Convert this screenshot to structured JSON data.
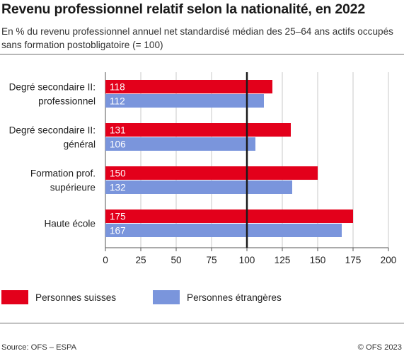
{
  "header": {
    "title": "Revenu professionnel relatif selon la nationalité, en 2022",
    "subtitle": "En % du revenu professionnel annuel net standardisé médian des 25–64 ans actifs occupés sans formation postobligatoire (= 100)"
  },
  "chart_data": {
    "type": "bar",
    "orientation": "horizontal",
    "categories": [
      [
        "Degré secondaire II:",
        "professionnel"
      ],
      [
        "Degré secondaire II:",
        "général"
      ],
      [
        "Formation prof.",
        "supérieure"
      ],
      [
        "Haute école"
      ]
    ],
    "series": [
      {
        "name": "Personnes suisses",
        "values": [
          118,
          131,
          150,
          175
        ],
        "color": "#e3001b"
      },
      {
        "name": "Personnes étrangères",
        "values": [
          112,
          106,
          132,
          167
        ],
        "color": "#7a95dc"
      }
    ],
    "xlim": [
      0,
      200
    ],
    "xticks": [
      0,
      25,
      50,
      75,
      100,
      125,
      150,
      175,
      200
    ],
    "reference_line": 100,
    "grid": true,
    "legend_position": "bottom"
  },
  "footer": {
    "source": "Source: OFS – ESPA",
    "copyright": "© OFS 2023"
  }
}
